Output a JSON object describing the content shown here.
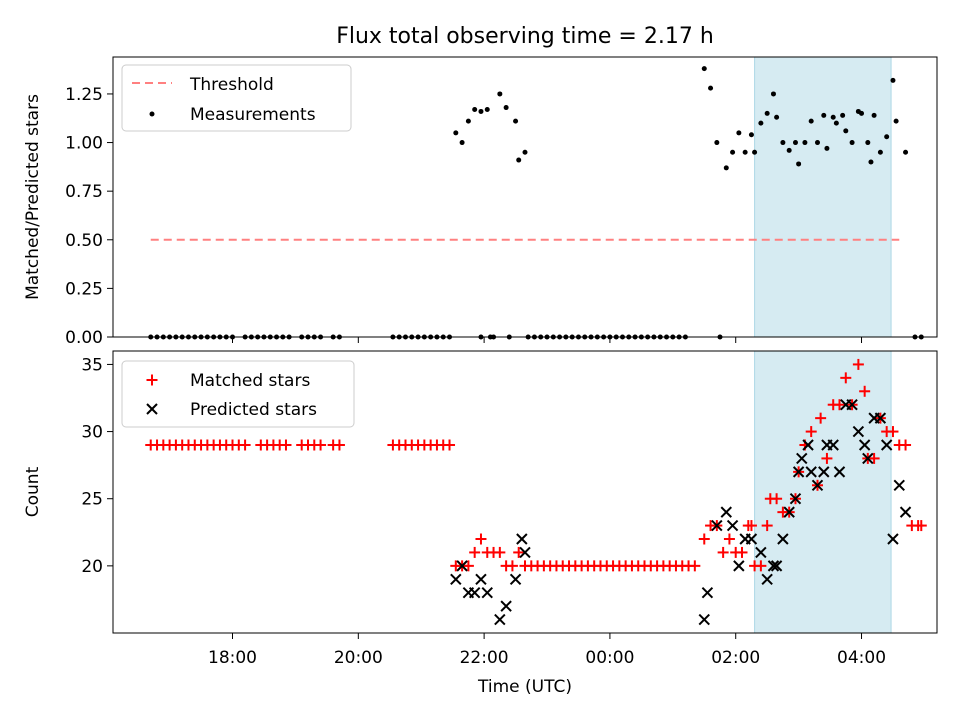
{
  "title": "Flux total observing time = 2.17 h",
  "colors": {
    "threshold": "#ff8080",
    "measurement": "#000000",
    "matched": "#ff0000",
    "predicted": "#000000",
    "shade": "#add8e6"
  },
  "chart_data": [
    {
      "type": "scatter",
      "ylabel": "Matched/Predicted stars",
      "ylim": [
        0,
        1.44
      ],
      "yticks": [
        0.0,
        0.25,
        0.5,
        0.75,
        1.0,
        1.25
      ],
      "ytick_labels": [
        "0.00",
        "0.25",
        "0.50",
        "0.75",
        "1.00",
        "1.25"
      ],
      "xlim_hours": [
        16.1,
        29.2
      ],
      "shaded_region_hours": [
        26.3,
        28.47
      ],
      "legend": {
        "position": "top-left",
        "threshold_label": "Threshold",
        "measurements_label": "Measurements"
      },
      "threshold": {
        "value": 0.5,
        "x_range_hours": [
          16.7,
          28.6
        ]
      },
      "measurements": [
        [
          16.7,
          0
        ],
        [
          16.8,
          0
        ],
        [
          16.9,
          0
        ],
        [
          17.0,
          0
        ],
        [
          17.1,
          0
        ],
        [
          17.2,
          0
        ],
        [
          17.3,
          0
        ],
        [
          17.4,
          0
        ],
        [
          17.5,
          0
        ],
        [
          17.6,
          0
        ],
        [
          17.7,
          0
        ],
        [
          17.8,
          0
        ],
        [
          17.9,
          0
        ],
        [
          18.0,
          0
        ],
        [
          18.2,
          0
        ],
        [
          18.3,
          0
        ],
        [
          18.4,
          0
        ],
        [
          18.5,
          0
        ],
        [
          18.6,
          0
        ],
        [
          18.7,
          0
        ],
        [
          18.8,
          0
        ],
        [
          18.9,
          0
        ],
        [
          19.1,
          0
        ],
        [
          19.2,
          0
        ],
        [
          19.3,
          0
        ],
        [
          19.4,
          0
        ],
        [
          19.6,
          0
        ],
        [
          19.7,
          0
        ],
        [
          20.55,
          0
        ],
        [
          20.65,
          0
        ],
        [
          20.75,
          0
        ],
        [
          20.85,
          0
        ],
        [
          20.95,
          0
        ],
        [
          21.05,
          0
        ],
        [
          21.15,
          0
        ],
        [
          21.25,
          0
        ],
        [
          21.35,
          0
        ],
        [
          21.45,
          0
        ],
        [
          21.55,
          1.05
        ],
        [
          21.65,
          1.0
        ],
        [
          21.75,
          1.11
        ],
        [
          21.85,
          1.17
        ],
        [
          21.95,
          1.16
        ],
        [
          22.05,
          1.17
        ],
        [
          21.95,
          0
        ],
        [
          22.1,
          0
        ],
        [
          22.15,
          0
        ],
        [
          22.4,
          0
        ],
        [
          22.25,
          1.25
        ],
        [
          22.35,
          1.18
        ],
        [
          22.5,
          1.11
        ],
        [
          22.55,
          0.91
        ],
        [
          22.65,
          0.95
        ],
        [
          22.7,
          0
        ],
        [
          22.8,
          0
        ],
        [
          22.9,
          0
        ],
        [
          23.0,
          0
        ],
        [
          23.1,
          0
        ],
        [
          23.2,
          0
        ],
        [
          23.3,
          0
        ],
        [
          23.4,
          0
        ],
        [
          23.5,
          0
        ],
        [
          23.6,
          0
        ],
        [
          23.7,
          0
        ],
        [
          23.8,
          0
        ],
        [
          23.9,
          0
        ],
        [
          24.0,
          0
        ],
        [
          24.1,
          0
        ],
        [
          24.2,
          0
        ],
        [
          24.3,
          0
        ],
        [
          24.4,
          0
        ],
        [
          24.5,
          0
        ],
        [
          24.6,
          0
        ],
        [
          24.7,
          0
        ],
        [
          24.8,
          0
        ],
        [
          24.9,
          0
        ],
        [
          25.0,
          0
        ],
        [
          25.1,
          0
        ],
        [
          25.2,
          0
        ],
        [
          25.5,
          1.38
        ],
        [
          25.6,
          1.28
        ],
        [
          25.7,
          1.0
        ],
        [
          25.85,
          0.87
        ],
        [
          25.95,
          0.95
        ],
        [
          26.05,
          1.05
        ],
        [
          26.15,
          0.95
        ],
        [
          26.25,
          1.04
        ],
        [
          25.75,
          0
        ],
        [
          26.3,
          0.95
        ],
        [
          26.4,
          1.1
        ],
        [
          26.5,
          1.15
        ],
        [
          26.6,
          1.25
        ],
        [
          26.65,
          1.13
        ],
        [
          26.75,
          1.0
        ],
        [
          26.85,
          0.96
        ],
        [
          26.95,
          1.0
        ],
        [
          27.0,
          0.89
        ],
        [
          27.1,
          1.0
        ],
        [
          27.2,
          1.11
        ],
        [
          27.3,
          1.0
        ],
        [
          27.4,
          1.14
        ],
        [
          27.45,
          0.97
        ],
        [
          27.55,
          1.13
        ],
        [
          27.6,
          1.1
        ],
        [
          27.7,
          1.14
        ],
        [
          27.75,
          1.06
        ],
        [
          27.85,
          1.0
        ],
        [
          27.95,
          1.16
        ],
        [
          28.0,
          1.15
        ],
        [
          28.1,
          1.0
        ],
        [
          28.15,
          0.9
        ],
        [
          28.2,
          1.14
        ],
        [
          28.3,
          0.95
        ],
        [
          28.4,
          1.03
        ],
        [
          28.5,
          1.32
        ],
        [
          28.55,
          1.11
        ],
        [
          28.7,
          0.95
        ],
        [
          28.85,
          0
        ],
        [
          28.95,
          0
        ]
      ]
    },
    {
      "type": "scatter",
      "xlabel": "Time (UTC)",
      "ylabel": "Count",
      "ylim": [
        15.0,
        36.0
      ],
      "yticks": [
        20,
        25,
        30,
        35
      ],
      "ytick_labels": [
        "20",
        "25",
        "30",
        "35"
      ],
      "xlim_hours": [
        16.1,
        29.2
      ],
      "xticks_hours": [
        18,
        20,
        22,
        24,
        26,
        28
      ],
      "xtick_labels": [
        "18:00",
        "20:00",
        "22:00",
        "00:00",
        "02:00",
        "04:00"
      ],
      "shaded_region_hours": [
        26.3,
        28.47
      ],
      "legend": {
        "position": "top-left",
        "matched_label": "Matched stars",
        "predicted_label": "Predicted stars"
      },
      "matched_stars": [
        [
          16.7,
          29
        ],
        [
          16.8,
          29
        ],
        [
          16.9,
          29
        ],
        [
          17.0,
          29
        ],
        [
          17.1,
          29
        ],
        [
          17.2,
          29
        ],
        [
          17.3,
          29
        ],
        [
          17.4,
          29
        ],
        [
          17.5,
          29
        ],
        [
          17.6,
          29
        ],
        [
          17.7,
          29
        ],
        [
          17.8,
          29
        ],
        [
          17.9,
          29
        ],
        [
          18.0,
          29
        ],
        [
          18.1,
          29
        ],
        [
          18.2,
          29
        ],
        [
          18.45,
          29
        ],
        [
          18.55,
          29
        ],
        [
          18.65,
          29
        ],
        [
          18.75,
          29
        ],
        [
          18.85,
          29
        ],
        [
          19.1,
          29
        ],
        [
          19.2,
          29
        ],
        [
          19.3,
          29
        ],
        [
          19.4,
          29
        ],
        [
          19.6,
          29
        ],
        [
          19.7,
          29
        ],
        [
          20.55,
          29
        ],
        [
          20.65,
          29
        ],
        [
          20.75,
          29
        ],
        [
          20.85,
          29
        ],
        [
          20.95,
          29
        ],
        [
          21.05,
          29
        ],
        [
          21.15,
          29
        ],
        [
          21.25,
          29
        ],
        [
          21.35,
          29
        ],
        [
          21.45,
          29
        ],
        [
          21.55,
          20
        ],
        [
          21.65,
          20
        ],
        [
          21.75,
          20
        ],
        [
          21.85,
          21
        ],
        [
          21.95,
          22
        ],
        [
          22.05,
          21
        ],
        [
          22.15,
          21
        ],
        [
          22.25,
          21
        ],
        [
          22.35,
          20
        ],
        [
          22.45,
          20
        ],
        [
          22.55,
          21
        ],
        [
          22.65,
          20
        ],
        [
          22.75,
          20
        ],
        [
          22.85,
          20
        ],
        [
          22.95,
          20
        ],
        [
          23.05,
          20
        ],
        [
          23.15,
          20
        ],
        [
          23.25,
          20
        ],
        [
          23.35,
          20
        ],
        [
          23.45,
          20
        ],
        [
          23.55,
          20
        ],
        [
          23.65,
          20
        ],
        [
          23.75,
          20
        ],
        [
          23.85,
          20
        ],
        [
          23.95,
          20
        ],
        [
          24.05,
          20
        ],
        [
          24.15,
          20
        ],
        [
          24.25,
          20
        ],
        [
          24.35,
          20
        ],
        [
          24.45,
          20
        ],
        [
          24.55,
          20
        ],
        [
          24.65,
          20
        ],
        [
          24.75,
          20
        ],
        [
          24.85,
          20
        ],
        [
          24.95,
          20
        ],
        [
          25.05,
          20
        ],
        [
          25.15,
          20
        ],
        [
          25.25,
          20
        ],
        [
          25.35,
          20
        ],
        [
          25.5,
          22
        ],
        [
          25.6,
          23
        ],
        [
          25.7,
          23
        ],
        [
          25.8,
          21
        ],
        [
          25.9,
          22
        ],
        [
          26.0,
          21
        ],
        [
          26.1,
          21
        ],
        [
          26.2,
          23
        ],
        [
          26.25,
          23
        ],
        [
          26.3,
          20
        ],
        [
          26.4,
          20
        ],
        [
          26.5,
          23
        ],
        [
          26.55,
          25
        ],
        [
          26.65,
          25
        ],
        [
          26.75,
          24
        ],
        [
          26.85,
          24
        ],
        [
          26.95,
          25
        ],
        [
          27.0,
          27
        ],
        [
          27.1,
          29
        ],
        [
          27.2,
          30
        ],
        [
          27.3,
          26
        ],
        [
          27.35,
          31
        ],
        [
          27.45,
          28
        ],
        [
          27.55,
          32
        ],
        [
          27.65,
          32
        ],
        [
          27.75,
          34
        ],
        [
          27.85,
          32
        ],
        [
          27.95,
          35
        ],
        [
          28.05,
          33
        ],
        [
          28.1,
          28
        ],
        [
          28.2,
          28
        ],
        [
          28.3,
          31
        ],
        [
          28.4,
          30
        ],
        [
          28.5,
          30
        ],
        [
          28.6,
          29
        ],
        [
          28.7,
          29
        ],
        [
          28.8,
          23
        ],
        [
          28.9,
          23
        ],
        [
          28.95,
          23
        ]
      ],
      "predicted_stars": [
        [
          21.55,
          19
        ],
        [
          21.65,
          20
        ],
        [
          21.75,
          18
        ],
        [
          21.85,
          18
        ],
        [
          21.95,
          19
        ],
        [
          22.05,
          18
        ],
        [
          22.25,
          16
        ],
        [
          22.35,
          17
        ],
        [
          22.5,
          19
        ],
        [
          22.6,
          22
        ],
        [
          22.65,
          21
        ],
        [
          25.5,
          16
        ],
        [
          25.55,
          18
        ],
        [
          25.7,
          23
        ],
        [
          25.85,
          24
        ],
        [
          25.95,
          23
        ],
        [
          26.05,
          20
        ],
        [
          26.15,
          22
        ],
        [
          26.25,
          22
        ],
        [
          26.4,
          21
        ],
        [
          26.5,
          19
        ],
        [
          26.6,
          20
        ],
        [
          26.65,
          20
        ],
        [
          26.75,
          22
        ],
        [
          26.85,
          24
        ],
        [
          26.95,
          25
        ],
        [
          27.0,
          27
        ],
        [
          27.05,
          28
        ],
        [
          27.15,
          29
        ],
        [
          27.2,
          27
        ],
        [
          27.3,
          26
        ],
        [
          27.4,
          27
        ],
        [
          27.45,
          29
        ],
        [
          27.55,
          29
        ],
        [
          27.65,
          27
        ],
        [
          27.75,
          32
        ],
        [
          27.85,
          32
        ],
        [
          27.95,
          30
        ],
        [
          28.05,
          29
        ],
        [
          28.1,
          28
        ],
        [
          28.2,
          31
        ],
        [
          28.3,
          31
        ],
        [
          28.4,
          29
        ],
        [
          28.5,
          22
        ],
        [
          28.6,
          26
        ],
        [
          28.7,
          24
        ]
      ]
    }
  ]
}
